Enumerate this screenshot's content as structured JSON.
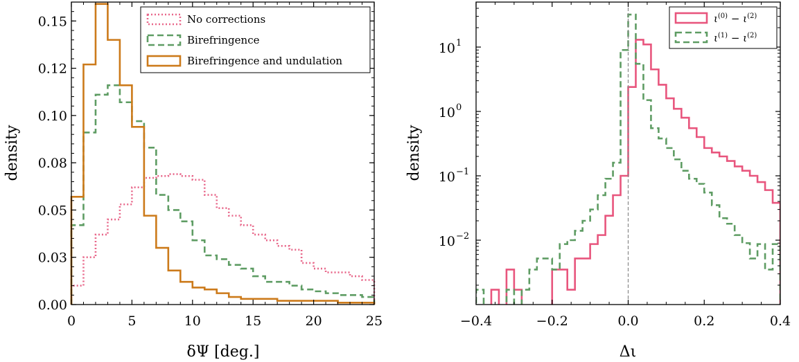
{
  "chart_data": [
    {
      "type": "histogram",
      "xlabel": "δΨ [deg.]",
      "ylabel": "density",
      "xlim": [
        0,
        25
      ],
      "ylim": [
        0,
        0.16
      ],
      "xticks": [
        "0",
        "5",
        "10",
        "15",
        "20",
        "25"
      ],
      "yticks": [
        "0.00",
        "0.03",
        "0.05",
        "0.08",
        "0.10",
        "0.12",
        "0.15"
      ],
      "ytick_values": [
        0.0,
        0.025,
        0.05,
        0.075,
        0.1,
        0.125,
        0.15
      ],
      "legend_position": "top-right",
      "bin_edges": [
        0,
        1,
        2,
        3,
        4,
        5,
        6,
        7,
        8,
        9,
        10,
        11,
        12,
        13,
        14,
        15,
        16,
        17,
        18,
        19,
        20,
        21,
        22,
        23,
        24,
        25
      ],
      "series": [
        {
          "name": "No corrections",
          "style": "dotted",
          "color": "#e8678a",
          "values": [
            0.01,
            0.025,
            0.037,
            0.045,
            0.053,
            0.062,
            0.067,
            0.068,
            0.069,
            0.068,
            0.066,
            0.058,
            0.051,
            0.047,
            0.042,
            0.037,
            0.034,
            0.031,
            0.029,
            0.022,
            0.019,
            0.017,
            0.017,
            0.015,
            0.013
          ]
        },
        {
          "name": "Birefringence",
          "style": "dashed",
          "color": "#5e9c63",
          "values": [
            0.042,
            0.091,
            0.111,
            0.116,
            0.107,
            0.097,
            0.083,
            0.058,
            0.05,
            0.044,
            0.034,
            0.026,
            0.024,
            0.021,
            0.019,
            0.015,
            0.012,
            0.012,
            0.01,
            0.008,
            0.007,
            0.006,
            0.005,
            0.005,
            0.004
          ]
        },
        {
          "name": "Birefringence and undulation",
          "style": "solid",
          "color": "#cc7a1a",
          "values": [
            0.057,
            0.127,
            0.159,
            0.14,
            0.116,
            0.094,
            0.047,
            0.03,
            0.018,
            0.012,
            0.009,
            0.008,
            0.006,
            0.004,
            0.003,
            0.003,
            0.003,
            0.002,
            0.002,
            0.002,
            0.002,
            0.002,
            0.001,
            0.001,
            0.001
          ]
        }
      ]
    },
    {
      "type": "histogram",
      "xlabel": "Δι",
      "ylabel": "density",
      "xlim": [
        -0.4,
        0.4
      ],
      "ylim": [
        0.001,
        50
      ],
      "yscale": "log",
      "xticks": [
        "−0.4",
        "−0.2",
        "0.0",
        "0.2",
        "0.4"
      ],
      "xtick_values": [
        -0.4,
        -0.2,
        0.0,
        0.2,
        0.4
      ],
      "yticks": [
        "10",
        "10",
        "10",
        "10"
      ],
      "ytick_exponents": [
        "1",
        "0",
        "−1",
        "−2"
      ],
      "ytick_values": [
        10,
        1,
        0.1,
        0.01
      ],
      "vertical_reference_line_x": 0.0,
      "legend_position": "top-right",
      "bin_edges": [
        -0.4,
        -0.38,
        -0.36,
        -0.34,
        -0.32,
        -0.3,
        -0.28,
        -0.26,
        -0.24,
        -0.22,
        -0.2,
        -0.18,
        -0.16,
        -0.14,
        -0.12,
        -0.1,
        -0.08,
        -0.06,
        -0.04,
        -0.02,
        0.0,
        0.02,
        0.04,
        0.06,
        0.08,
        0.1,
        0.12,
        0.14,
        0.16,
        0.18,
        0.2,
        0.22,
        0.24,
        0.26,
        0.28,
        0.3,
        0.32,
        0.34,
        0.36,
        0.38,
        0.4
      ],
      "series": [
        {
          "name": "ι(0) − ι(2)",
          "legend_parts": {
            "base1": "ι",
            "sup1": "(0)",
            "minus": " − ",
            "base2": "ι",
            "sup2": "(2)"
          },
          "style": "solid",
          "color": "#e8557d",
          "values": [
            0,
            0,
            0.0017,
            0,
            0.0035,
            0.0017,
            0,
            0,
            0,
            0,
            0.0035,
            0.0035,
            0.0017,
            0.0052,
            0.0052,
            0.0087,
            0.012,
            0.024,
            0.05,
            0.1,
            2.4,
            13.0,
            11.0,
            4.5,
            2.6,
            1.6,
            1.1,
            0.8,
            0.55,
            0.4,
            0.27,
            0.23,
            0.2,
            0.17,
            0.14,
            0.12,
            0.1,
            0.08,
            0.06,
            0.038
          ]
        },
        {
          "name": "ι(1) − ι(2)",
          "legend_parts": {
            "base1": "ι",
            "sup1": "(1)",
            "minus": " − ",
            "base2": "ι",
            "sup2": "(2)"
          },
          "style": "dashed",
          "color": "#5e9c63",
          "values": [
            0.0017,
            0,
            0,
            0,
            0.0017,
            0,
            0.0017,
            0.0035,
            0.0052,
            0.0052,
            0.0035,
            0.0087,
            0.01,
            0.014,
            0.02,
            0.03,
            0.05,
            0.09,
            0.16,
            9.0,
            32.0,
            5.5,
            1.5,
            0.55,
            0.38,
            0.27,
            0.18,
            0.12,
            0.09,
            0.075,
            0.055,
            0.035,
            0.022,
            0.018,
            0.012,
            0.009,
            0.0052,
            0.0087,
            0.0035,
            0.0087
          ]
        }
      ]
    }
  ]
}
